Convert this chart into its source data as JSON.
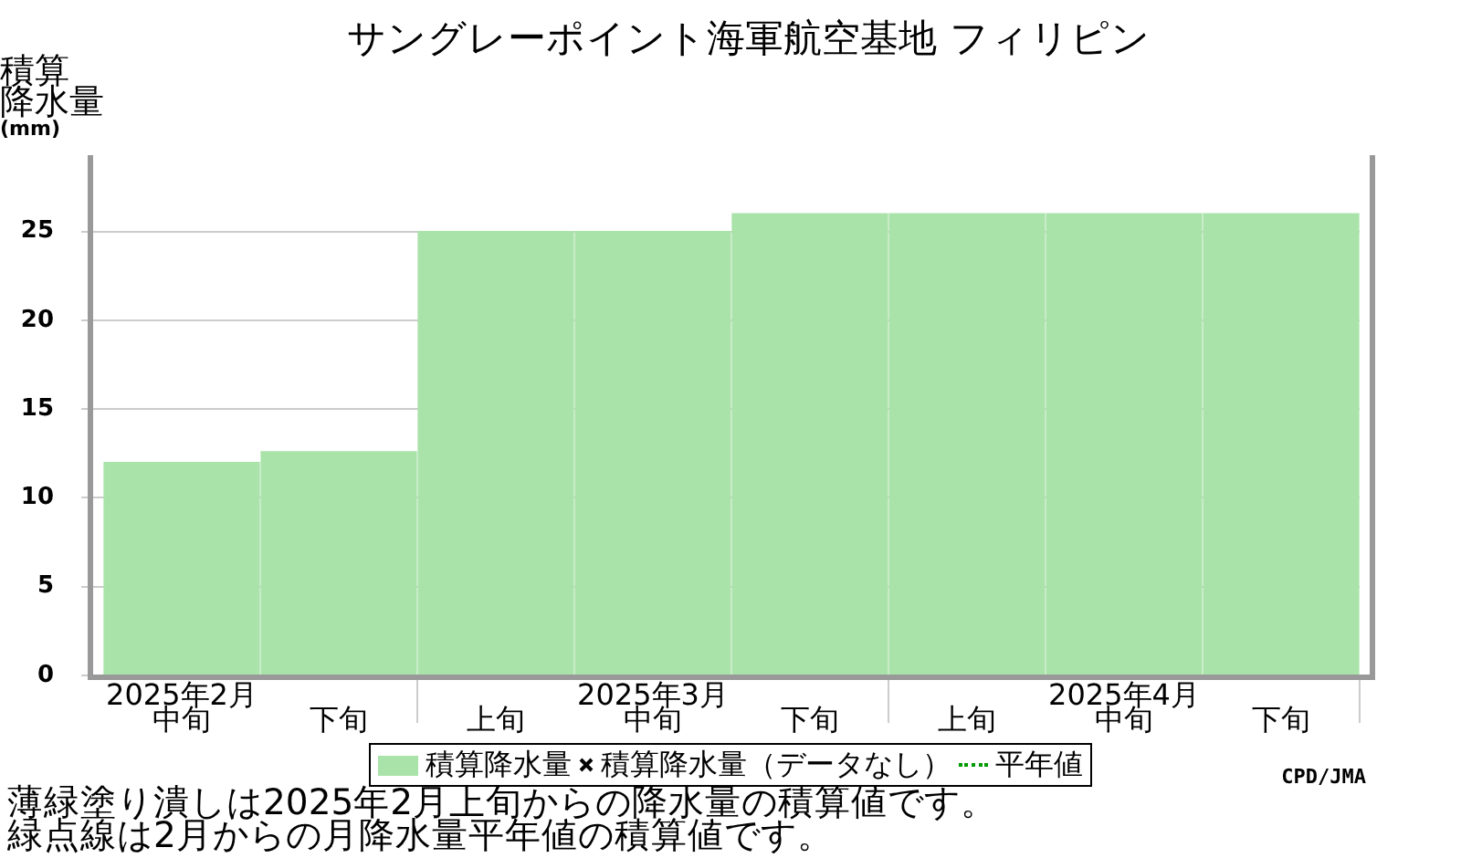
{
  "chart_data": {
    "type": "bar",
    "title": "サングレーポイント海軍航空基地 フィリピン",
    "ylabel": "積算降水量(mm)",
    "categories": [
      "2025年2月中旬",
      "下旬",
      "上旬",
      "2025年3月中旬",
      "下旬",
      "上旬",
      "2025年4月中旬",
      "下旬"
    ],
    "series": [
      {
        "name": "積算降水量",
        "color": "#aae3aa",
        "values": [
          12,
          12.6,
          25,
          25,
          26,
          26,
          26,
          26
        ]
      },
      {
        "name": "積算降水量（データなし）",
        "type": "scatter",
        "marker": "cross",
        "color": "#000000",
        "values": [
          null,
          null,
          null,
          null,
          null,
          null,
          null,
          null
        ]
      },
      {
        "name": "平年値",
        "type": "line",
        "line_style": "dotted",
        "color": "#009900",
        "values": [
          null,
          null,
          null,
          null,
          null,
          null,
          null,
          null
        ]
      }
    ],
    "ylim": [
      0,
      29.3
    ],
    "yticks": [
      0,
      5,
      10,
      15,
      20,
      25
    ],
    "grid": "y",
    "legend": "bottom",
    "annotations": [
      "薄緑塗り潰しは2025年2月上旬からの降水量の積算値です。",
      "緑点線は2月からの月降水量平年値の積算値です。",
      "CPD/JMA"
    ]
  }
}
